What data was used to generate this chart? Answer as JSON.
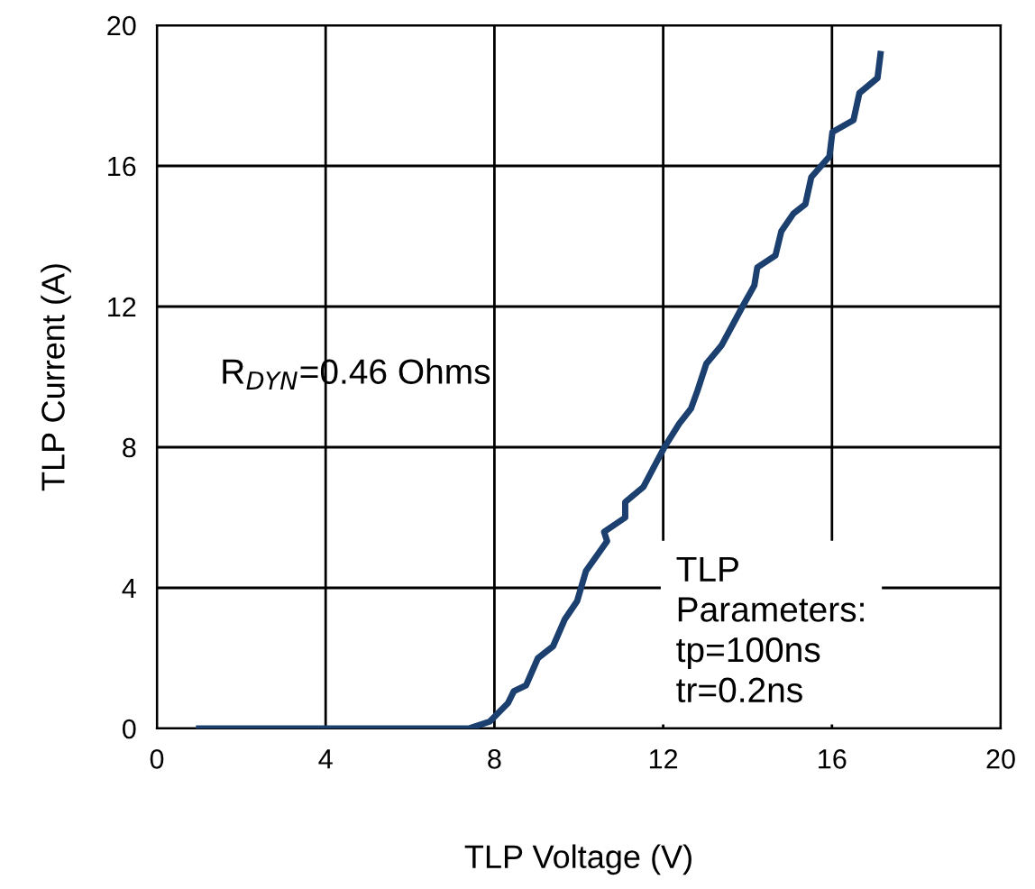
{
  "chart_data": {
    "type": "line",
    "xlabel": "TLP Voltage (V)",
    "ylabel": "TLP Current (A)",
    "series": [
      {
        "color": "#1b3f6e",
        "x": [
          1.0,
          4.0,
          7.39,
          7.89,
          8.32,
          8.46,
          8.75,
          9.03,
          9.39,
          9.67,
          9.96,
          10.17,
          10.67,
          10.6,
          11.1,
          11.1,
          11.53,
          12.02,
          12.38,
          12.66,
          12.81,
          13.02,
          13.38,
          13.88,
          14.16,
          14.23,
          14.66,
          14.8,
          15.09,
          15.37,
          15.51,
          15.94,
          16.01,
          16.51,
          16.65,
          17.08,
          17.15
        ],
        "values": [
          0,
          0,
          0,
          0.2,
          0.72,
          1.06,
          1.23,
          2.0,
          2.34,
          3.11,
          3.62,
          4.48,
          5.33,
          5.59,
          6.0,
          6.44,
          6.87,
          7.98,
          8.67,
          9.1,
          9.6,
          10.37,
          10.89,
          12.0,
          12.6,
          13.11,
          13.45,
          14.14,
          14.65,
          14.91,
          15.68,
          16.27,
          16.96,
          17.3,
          18.07,
          18.5,
          19.18
        ]
      }
    ],
    "xlim": [
      0,
      20
    ],
    "ylim": [
      0,
      20
    ],
    "xticks": [
      0,
      4,
      8,
      12,
      16,
      20
    ],
    "yticks": [
      0,
      4,
      8,
      12,
      16,
      20
    ],
    "grid": true,
    "line_style": "solid",
    "marker": "none",
    "legend": false,
    "annotations": [
      "R$_{DYN}$=0.46 Ohms",
      "TLP\nParameters:\ntp=100ns\ntr=0.2ns"
    ]
  }
}
